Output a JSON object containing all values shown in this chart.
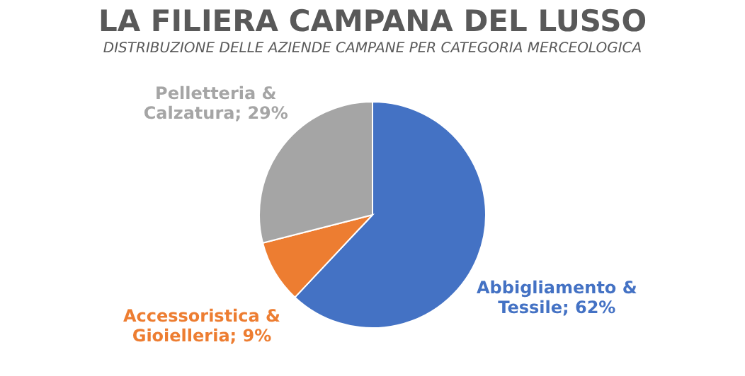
{
  "chart_data": {
    "type": "pie",
    "title": "LA FILIERA CAMPANA DEL LUSSO",
    "subtitle": "DISTRIBUZIONE DELLE AZIENDE CAMPANE PER CATEGORIA MERCEOLOGICA",
    "categories": [
      "Abbigliamento & Tessile",
      "Accessoristica & Gioielleria",
      "Pelletteria & Calzatura"
    ],
    "values": [
      62,
      9,
      29
    ],
    "colors": [
      "#4472c4",
      "#ed7d31",
      "#a5a5a5"
    ],
    "value_labels": [
      "62%",
      "9%",
      "29%"
    ],
    "legend": false
  }
}
